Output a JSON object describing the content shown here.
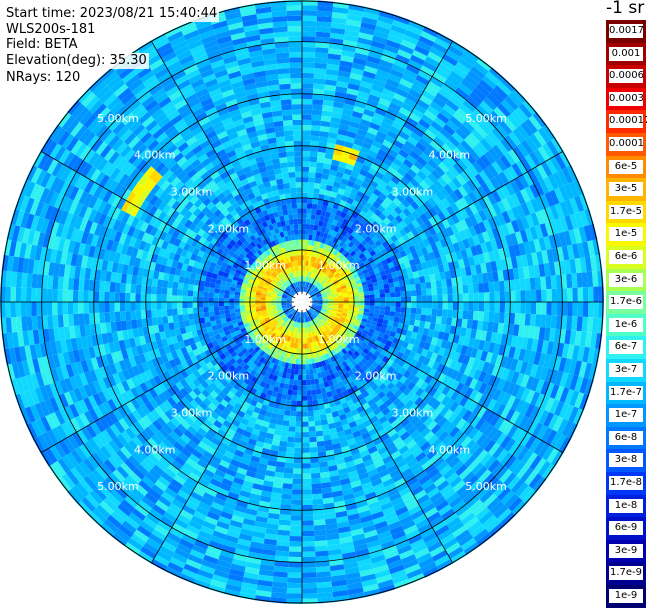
{
  "header": {
    "start_time": "Start time: 2023/08/21 15:40:44",
    "instrument": "WLS200s-181",
    "field": "Field: BETA",
    "elevation": "Elevation(deg): 35.30",
    "nrays": "NRays: 120"
  },
  "colorbar": {
    "unit": "-1 sr",
    "labels": [
      "0.0017",
      "0.001",
      "0.0006",
      "0.0003",
      "0.00017",
      "0.0001",
      "6e-5",
      "3e-5",
      "1.7e-5",
      "1e-5",
      "6e-6",
      "3e-6",
      "1.7e-6",
      "1e-6",
      "6e-7",
      "3e-7",
      "1.7e-7",
      "1e-7",
      "6e-8",
      "3e-8",
      "1.7e-8",
      "1e-8",
      "6e-9",
      "3e-9",
      "1.7e-9",
      "1e-9"
    ],
    "colors": [
      "#7a0000",
      "#a00000",
      "#c80000",
      "#f00000",
      "#ff2a00",
      "#ff5a00",
      "#ff8c00",
      "#ffb400",
      "#ffd800",
      "#f8f800",
      "#d8ff20",
      "#a8ff50",
      "#78ffa0",
      "#50ffc8",
      "#30f0f0",
      "#10d8ff",
      "#00b8ff",
      "#0098ff",
      "#0078ff",
      "#0058ff",
      "#0038f8",
      "#0020e0",
      "#0010c8",
      "#0000b0",
      "#000090",
      "#000070"
    ]
  },
  "chart_data": {
    "type": "heatmap",
    "projection": "polar PPI",
    "field": "BETA",
    "units": "-1 sr",
    "n_rays": 120,
    "range_rings_km": [
      1,
      2,
      3,
      4,
      5
    ],
    "range_ring_labels": [
      "1.00km",
      "2.00km",
      "3.00km",
      "4.00km",
      "5.00km"
    ],
    "max_range_km": 5.8,
    "spokes_deg": [
      0,
      30,
      60,
      90,
      120,
      150,
      180,
      210,
      240,
      270,
      300,
      330
    ],
    "colorbar_levels": [
      "1e-9",
      "1.7e-9",
      "3e-9",
      "6e-9",
      "1e-8",
      "1.7e-8",
      "3e-8",
      "6e-8",
      "1e-7",
      "1.7e-7",
      "3e-7",
      "6e-7",
      "1e-6",
      "1.7e-6",
      "3e-6",
      "6e-6",
      "1e-5",
      "1.7e-5",
      "3e-5",
      "6e-5",
      "0.0001",
      "0.00017",
      "0.0003",
      "0.0006",
      "0.001",
      "0.0017"
    ],
    "background_level": "1.7e-7",
    "features": [
      {
        "name": "ring",
        "range_km": [
          0.4,
          1.2
        ],
        "level": "3e-5"
      },
      {
        "name": "arc",
        "range_km": 3.8,
        "azimuth_deg": [
          295,
          310
        ],
        "level": "1.7e-5"
      },
      {
        "name": "arc",
        "range_km": 3.0,
        "azimuth_deg": [
          10,
          20
        ],
        "level": "3e-5"
      }
    ]
  }
}
